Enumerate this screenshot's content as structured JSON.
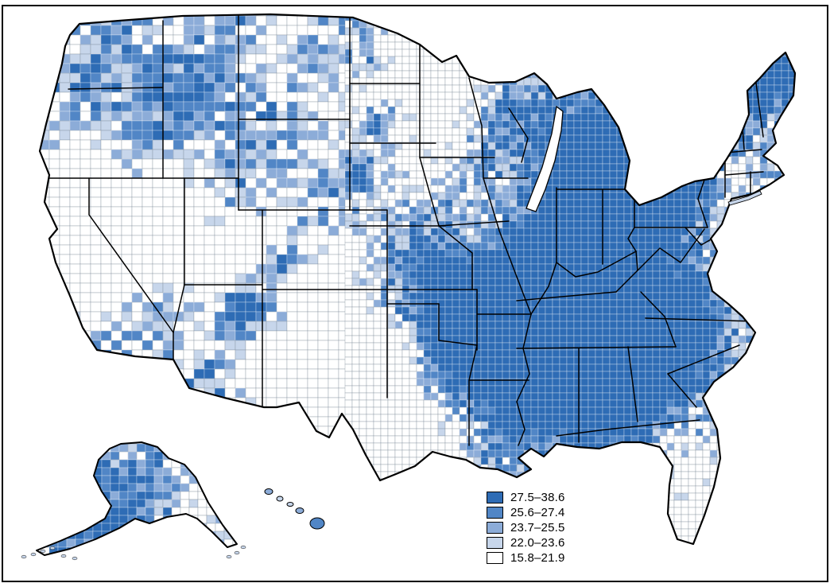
{
  "legend": {
    "classes": [
      {
        "label": "27.5–38.6",
        "color": "#2e6cb5"
      },
      {
        "label": "25.6–27.4",
        "color": "#5186c6"
      },
      {
        "label": "23.7–25.5",
        "color": "#8cacd8"
      },
      {
        "label": "22.0–23.6",
        "color": "#c7d6eb"
      },
      {
        "label": "15.8–21.9",
        "color": "#ffffff"
      }
    ]
  },
  "map": {
    "colors": {
      "outline": "#000000",
      "state_border": "#000000",
      "county_border_light": "#7c8896",
      "county_border_on_dark": "#ffffff",
      "lake_fill": "#ffffff",
      "frame": "#000000",
      "background": "#ffffff"
    }
  }
}
